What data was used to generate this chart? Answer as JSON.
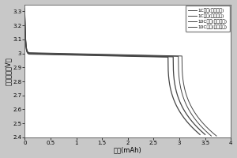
{
  "title": "",
  "xlabel": "容量(mAh)",
  "ylabel": "放电电压（V）",
  "xlim": [
    0,
    4
  ],
  "ylim": [
    2.4,
    3.35
  ],
  "xticks": [
    0,
    0.5,
    1.0,
    1.5,
    2.0,
    2.5,
    3.0,
    3.5,
    4.0
  ],
  "yticks": [
    2.4,
    2.5,
    2.6,
    2.7,
    2.8,
    2.9,
    3.0,
    3.1,
    3.2,
    3.3
  ],
  "xtick_labels": [
    "0",
    "0.5",
    "1",
    "1.5",
    "2",
    "2.5",
    "3",
    "3.5",
    "4"
  ],
  "ytick_labels": [
    "2.4",
    "2.5",
    "2.6",
    "2.7",
    "2.8",
    "2.9",
    "3",
    "3.1",
    "3.2",
    "3.3"
  ],
  "legend_labels": [
    "1C放电(水系负极)",
    "1C放电(油系负极)",
    "10C放电(水系负极)",
    "10C放电(油系负极)"
  ],
  "background_color": "#c8c8c8",
  "plot_bg_color": "#ffffff",
  "line_color": "#444444",
  "font_size": 6,
  "curves": [
    {
      "capacity_end": 3.72,
      "initial_peak": 3.32,
      "plateau": 3.005,
      "drop_start": 3.05,
      "v_min": 2.41,
      "lw": 0.7,
      "ls": "-"
    },
    {
      "capacity_end": 3.62,
      "initial_peak": 3.3,
      "plateau": 3.002,
      "drop_start": 2.98,
      "v_min": 2.41,
      "lw": 0.7,
      "ls": "-"
    },
    {
      "capacity_end": 3.5,
      "initial_peak": 3.28,
      "plateau": 2.998,
      "drop_start": 2.88,
      "v_min": 2.42,
      "lw": 0.9,
      "ls": "-"
    },
    {
      "capacity_end": 3.4,
      "initial_peak": 3.26,
      "plateau": 2.995,
      "drop_start": 2.78,
      "v_min": 2.42,
      "lw": 0.9,
      "ls": "-"
    }
  ]
}
